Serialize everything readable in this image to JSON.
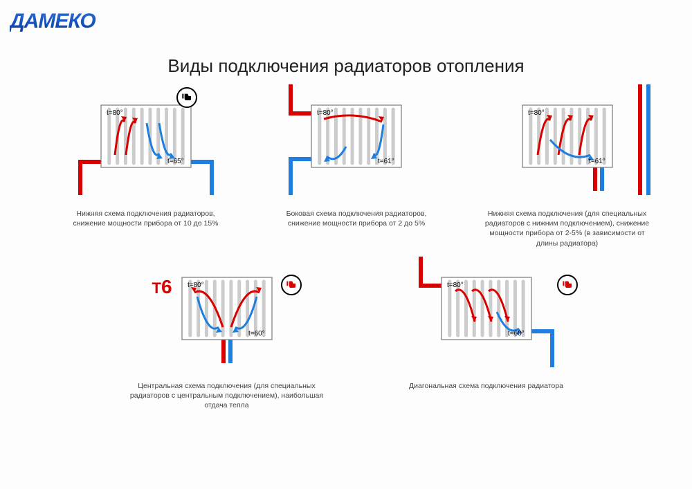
{
  "logo": {
    "text": "ДАМЕКО",
    "color_from": "#2b6fd6",
    "color_to": "#0a3da8",
    "font_style": "bold italic",
    "font_size": 30
  },
  "title": "Виды подключения радиаторов отопления",
  "colors": {
    "hot": "#d90000",
    "cold": "#1e7fe0",
    "radiator_border": "#7a7a7a",
    "radiator_fin": "#cccccc",
    "badge_good": "#d90000",
    "badge_bad": "#000000",
    "text": "#444444"
  },
  "radiator": {
    "width": 130,
    "height": 90,
    "fin_count": 10,
    "border_width": 1.2
  },
  "pipe_width": 6,
  "diagrams": [
    {
      "id": "bottom-opposite",
      "t_in": "t=80°",
      "t_out": "t=65°",
      "badge": "bad",
      "caption": "Нижняя схема подключения радиаторов,\nснижение мощности прибора от 10 до 15%",
      "pipes": {
        "type": "bottom-left-right",
        "in_side": "left",
        "out_side": "right"
      }
    },
    {
      "id": "side",
      "t_in": "t=80°",
      "t_out": "t=61°",
      "badge": null,
      "caption": "Боковая схема подключения радиаторов,\nснижение мощности прибора от 2 до 5%",
      "pipes": {
        "type": "side-left",
        "in_top": true
      }
    },
    {
      "id": "bottom-special",
      "t_in": "t=80°",
      "t_out": "t=61°",
      "badge": null,
      "caption": "Нижняя схема подключения\n(для специальных радиаторов с нижним подключением),\nснижение мощности прибора от 2-5%\n(в зависимости от длины радиатора)",
      "pipes": {
        "type": "bottom-pair-right"
      }
    },
    {
      "id": "central",
      "t_in": "t=80°",
      "t_out": "t=60°",
      "badge": "good",
      "t6": true,
      "caption": "Центральная схема подключения\n(для специальных радиаторов с центральным подключением),\nнаибольшая отдача тепла",
      "pipes": {
        "type": "bottom-pair-center"
      }
    },
    {
      "id": "diagonal",
      "t_in": "t=80°",
      "t_out": "t=60°",
      "badge": "good",
      "caption": "Диагональная схема подключения радиатора",
      "pipes": {
        "type": "diagonal"
      }
    }
  ]
}
